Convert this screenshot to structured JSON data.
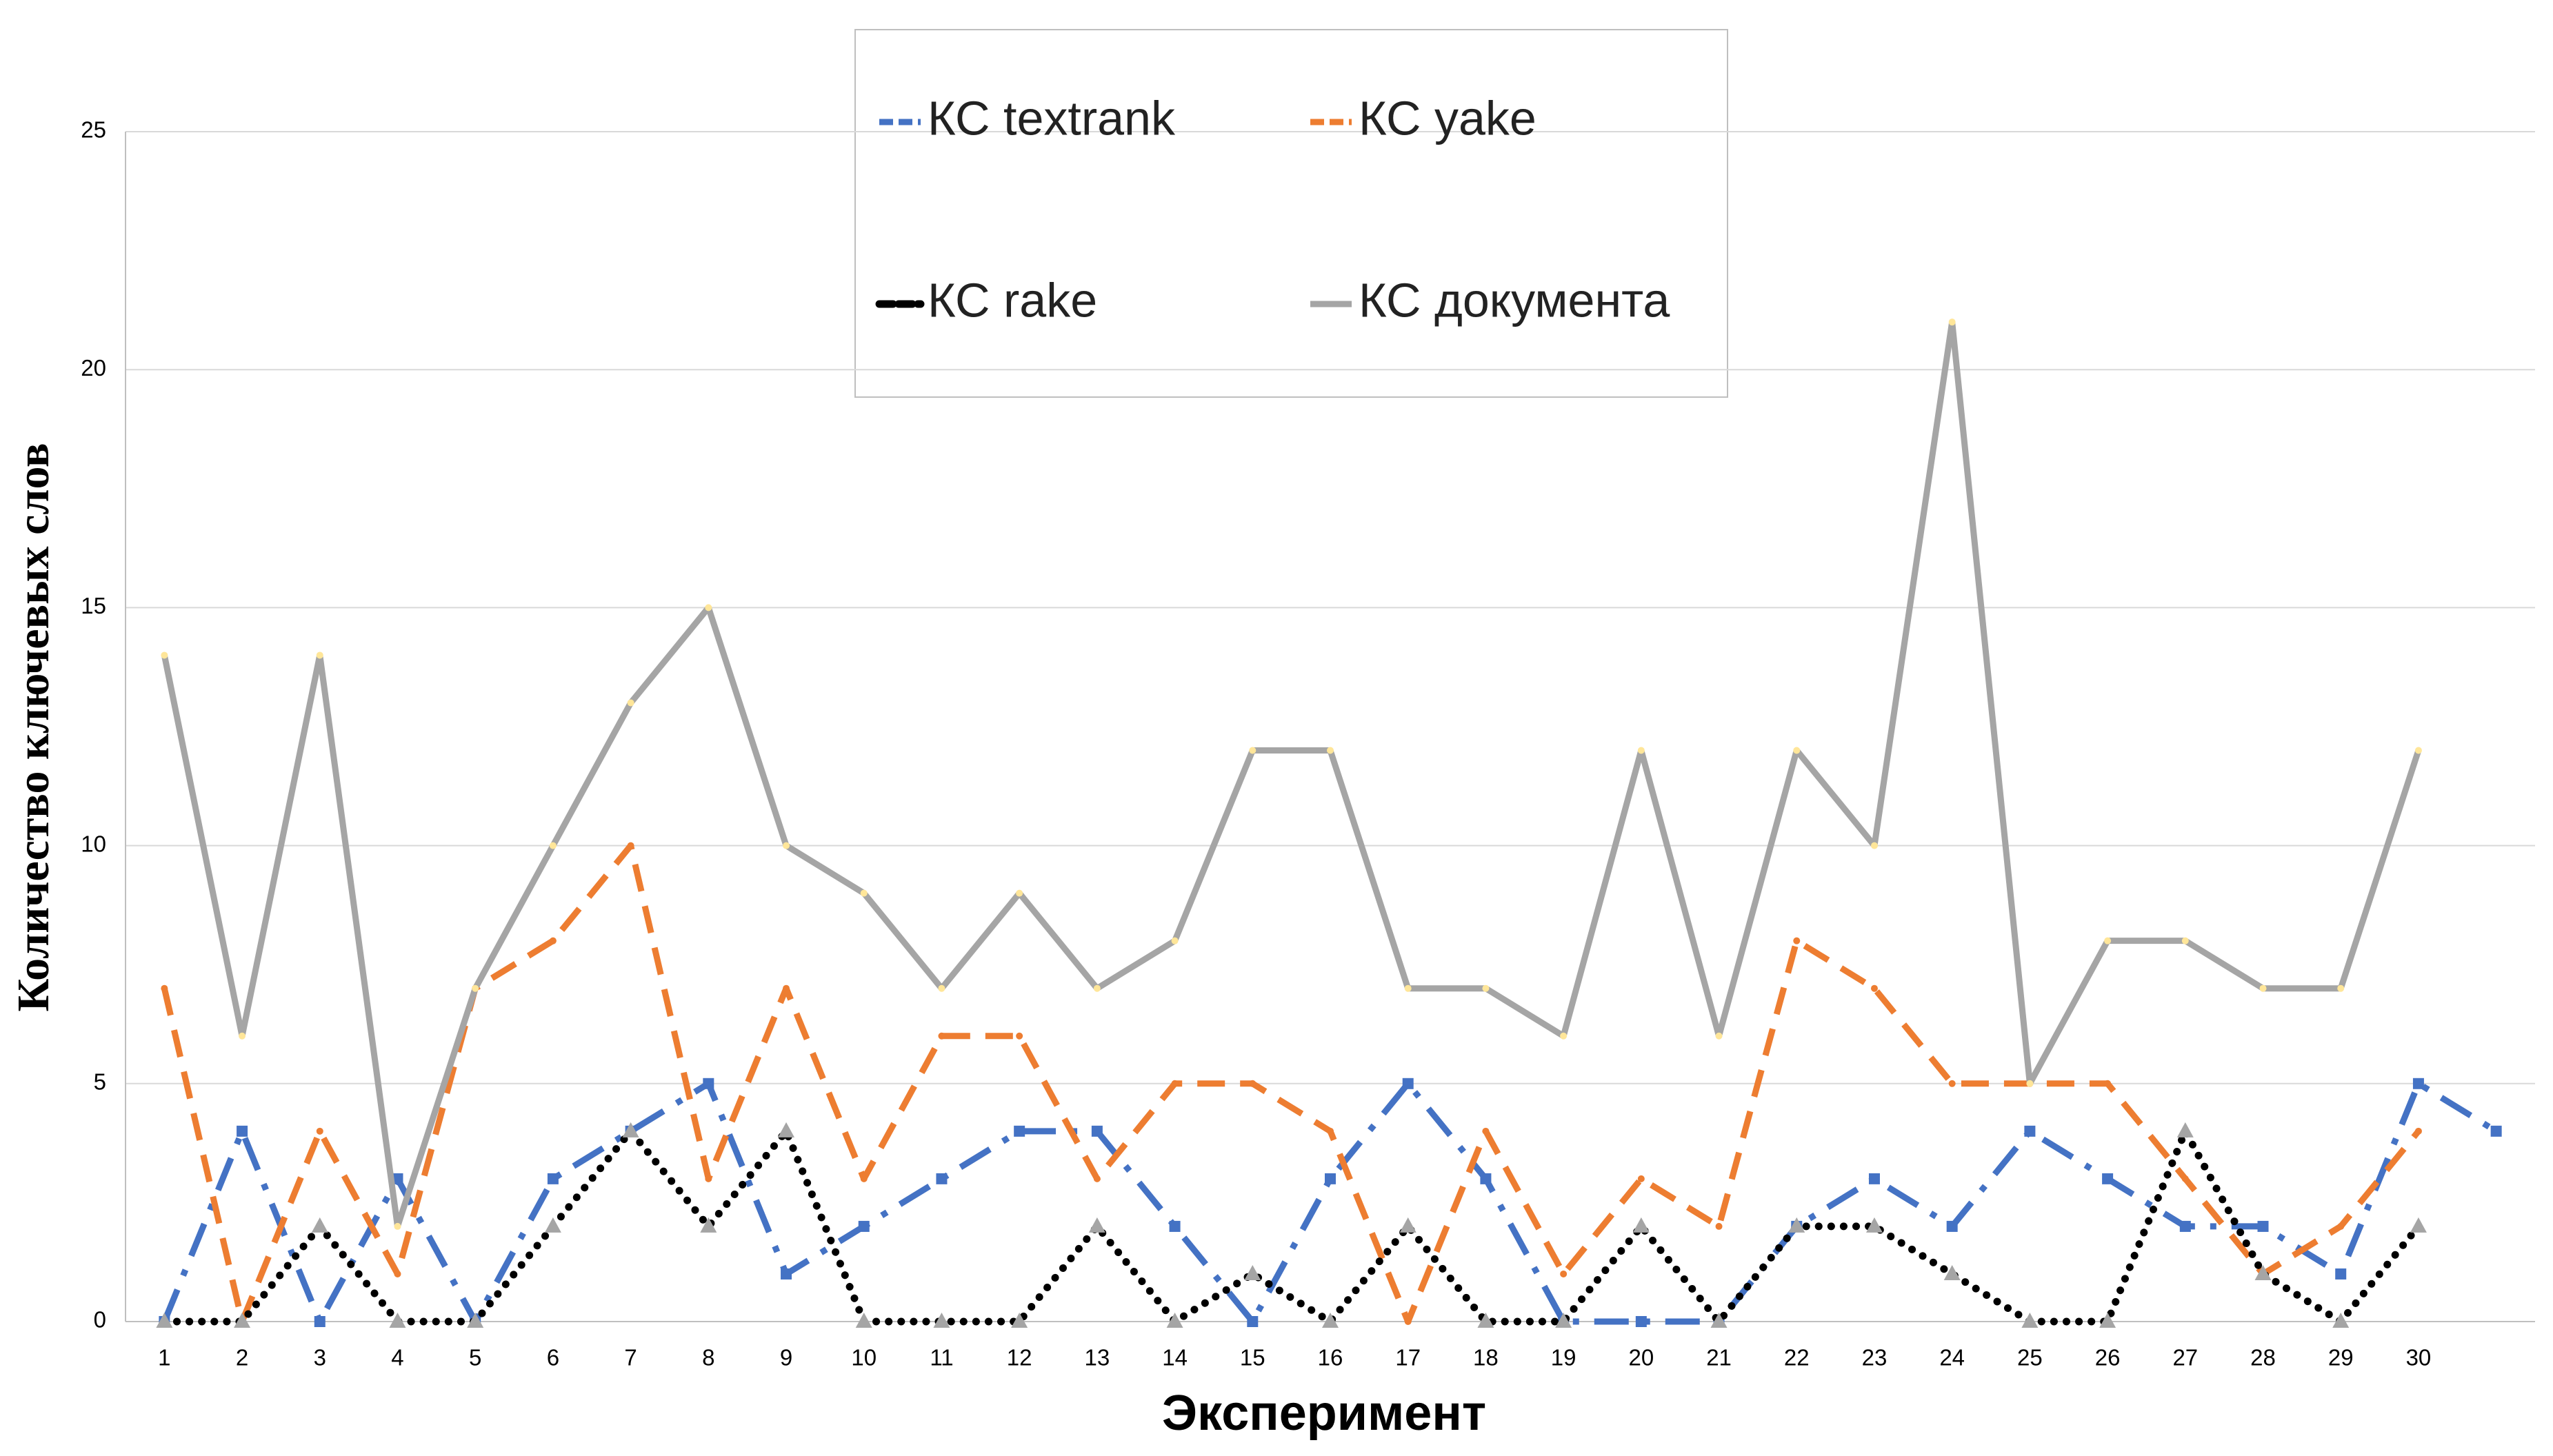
{
  "chart_data": {
    "type": "line",
    "x_label": "Эксперимент",
    "y_label": "Количество ключевых слов",
    "categories": [
      "1",
      "2",
      "3",
      "4",
      "5",
      "6",
      "7",
      "8",
      "9",
      "10",
      "11",
      "12",
      "13",
      "14",
      "15",
      "16",
      "17",
      "18",
      "19",
      "20",
      "21",
      "22",
      "23",
      "24",
      "25",
      "26",
      "27",
      "28",
      "29",
      "30",
      null
    ],
    "series": [
      {
        "name": "КС textrank",
        "color": "#4472c4",
        "values": [
          0,
          4,
          0,
          3,
          0,
          3,
          4,
          5,
          1,
          2,
          3,
          4,
          4,
          2,
          0,
          3,
          5,
          3,
          0,
          0,
          0,
          2,
          3,
          2,
          4,
          3,
          2,
          2,
          1,
          5,
          4
        ]
      },
      {
        "name": "КС yake",
        "color": "#ed7d31",
        "values": [
          7,
          0,
          4,
          1,
          7,
          8,
          10,
          3,
          7,
          3,
          6,
          6,
          3,
          5,
          5,
          4,
          0,
          4,
          1,
          3,
          2,
          8,
          7,
          5,
          5,
          5,
          3,
          1,
          2,
          4,
          null
        ]
      },
      {
        "name": "КС rake",
        "color": "#000000",
        "values": [
          0,
          0,
          2,
          0,
          0,
          2,
          4,
          2,
          4,
          0,
          0,
          0,
          2,
          0,
          1,
          0,
          2,
          0,
          0,
          2,
          0,
          2,
          2,
          1,
          0,
          0,
          4,
          1,
          0,
          2,
          null
        ]
      },
      {
        "name": "КС документа",
        "color": "#a5a5a5",
        "values": [
          14,
          6,
          14,
          2,
          7,
          10,
          13,
          15,
          10,
          9,
          7,
          9,
          7,
          8,
          12,
          12,
          7,
          7,
          6,
          12,
          6,
          12,
          10,
          21,
          5,
          8,
          8,
          7,
          7,
          12,
          null
        ]
      }
    ],
    "ylim": [
      0,
      25
    ],
    "yticks": [
      0,
      5,
      10,
      15,
      20,
      25
    ],
    "grid": true
  }
}
